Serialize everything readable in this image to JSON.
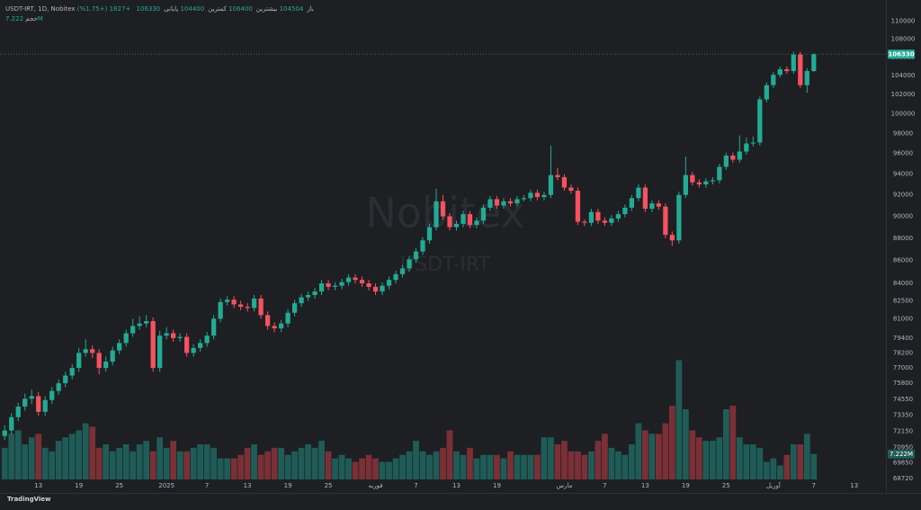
{
  "chart_data": {
    "type": "candlestick",
    "header": {
      "symbol": "USDT-IRT, 1D, Nobitex",
      "open_label": "باز",
      "high_label": "بیشترین",
      "low_label": "کمترین",
      "close_label": "پایانی",
      "change": "+1827 (+1.75%)"
    },
    "watermark": [
      "Nobitex",
      "USDT-IRT"
    ],
    "footer": "TradingView",
    "up_color": "#22ab94",
    "down_color": "#f7525f",
    "log_scale": true,
    "ylim": [
      67900,
      111600
    ],
    "yticks": [
      110000,
      108000,
      106000,
      104000,
      102000,
      100000,
      98000,
      96000,
      94000,
      92000,
      90000,
      88000,
      86000,
      84000,
      82500,
      81000,
      79400,
      78200,
      77000,
      75800,
      74550,
      73350,
      72150,
      70950,
      69850,
      68720
    ],
    "xlim": [
      -0.7,
      130.7
    ],
    "xticks": [
      {
        "value": 5,
        "label": "13"
      },
      {
        "value": 11,
        "label": "19"
      },
      {
        "value": 17,
        "label": "25"
      },
      {
        "value": 24,
        "label": "2025"
      },
      {
        "value": 30,
        "label": "7"
      },
      {
        "value": 36,
        "label": "13"
      },
      {
        "value": 42,
        "label": "19"
      },
      {
        "value": 48,
        "label": "25"
      },
      {
        "value": 55,
        "label": "فوریه"
      },
      {
        "value": 61,
        "label": "7"
      },
      {
        "value": 67,
        "label": "13"
      },
      {
        "value": 73,
        "label": "19"
      },
      {
        "value": 83,
        "label": "مارس"
      },
      {
        "value": 89,
        "label": "7"
      },
      {
        "value": 95,
        "label": "13"
      },
      {
        "value": 101,
        "label": "19"
      },
      {
        "value": 107,
        "label": "25"
      },
      {
        "value": 114,
        "label": "آوریل"
      },
      {
        "value": 120,
        "label": "7"
      },
      {
        "value": 126,
        "label": "13"
      }
    ],
    "ohlc": [
      [
        71800,
        72600,
        71500,
        72200
      ],
      [
        72200,
        73500,
        71900,
        73200
      ],
      [
        73200,
        74300,
        72900,
        74000
      ],
      [
        74000,
        75000,
        73700,
        74600
      ],
      [
        74600,
        75300,
        74200,
        74800
      ],
      [
        74800,
        75100,
        73300,
        73600
      ],
      [
        73600,
        74800,
        73300,
        74500
      ],
      [
        74500,
        75500,
        74200,
        75200
      ],
      [
        75200,
        76100,
        74900,
        75800
      ],
      [
        75800,
        76700,
        75500,
        76400
      ],
      [
        76400,
        77300,
        76100,
        77000
      ],
      [
        77000,
        78600,
        76700,
        78200
      ],
      [
        78200,
        79300,
        77900,
        78500
      ],
      [
        78500,
        78800,
        77800,
        78200
      ],
      [
        78200,
        78500,
        76500,
        77000
      ],
      [
        77000,
        77900,
        76700,
        77500
      ],
      [
        77500,
        78700,
        77200,
        78400
      ],
      [
        78400,
        79300,
        78100,
        79000
      ],
      [
        79000,
        80100,
        78700,
        79800
      ],
      [
        79800,
        81000,
        79500,
        80400
      ],
      [
        80400,
        81200,
        80100,
        80600
      ],
      [
        80600,
        81300,
        80300,
        80800
      ],
      [
        80800,
        81100,
        76700,
        77000
      ],
      [
        77000,
        80000,
        76700,
        79600
      ],
      [
        79600,
        80300,
        79300,
        79800
      ],
      [
        79800,
        80100,
        79100,
        79400
      ],
      [
        79400,
        79800,
        79100,
        79500
      ],
      [
        79500,
        79800,
        77900,
        78200
      ],
      [
        78200,
        78900,
        77900,
        78600
      ],
      [
        78600,
        79300,
        78300,
        79000
      ],
      [
        79000,
        79900,
        78700,
        79600
      ],
      [
        79600,
        81300,
        79300,
        81000
      ],
      [
        81000,
        82700,
        80700,
        82400
      ],
      [
        82400,
        82900,
        82100,
        82600
      ],
      [
        82600,
        82900,
        81900,
        82200
      ],
      [
        82200,
        82500,
        81700,
        82000
      ],
      [
        82000,
        82300,
        81600,
        81900
      ],
      [
        81900,
        83000,
        81600,
        82700
      ],
      [
        82700,
        83000,
        81000,
        81300
      ],
      [
        81300,
        81600,
        80100,
        80400
      ],
      [
        80400,
        80700,
        79900,
        80200
      ],
      [
        80200,
        80900,
        79900,
        80600
      ],
      [
        80600,
        81800,
        80300,
        81500
      ],
      [
        81500,
        82600,
        81200,
        82300
      ],
      [
        82300,
        83100,
        82000,
        82800
      ],
      [
        82800,
        83300,
        82500,
        83000
      ],
      [
        83000,
        83600,
        82700,
        83300
      ],
      [
        83300,
        84300,
        83000,
        84000
      ],
      [
        84000,
        84300,
        83400,
        83700
      ],
      [
        83700,
        84100,
        83400,
        83800
      ],
      [
        83800,
        84400,
        83500,
        84100
      ],
      [
        84100,
        84800,
        83800,
        84500
      ],
      [
        84500,
        84800,
        84000,
        84300
      ],
      [
        84300,
        84600,
        83700,
        84000
      ],
      [
        84000,
        84300,
        83400,
        83700
      ],
      [
        83700,
        84000,
        83000,
        83300
      ],
      [
        83300,
        84100,
        83000,
        83800
      ],
      [
        83800,
        84600,
        83500,
        84300
      ],
      [
        84300,
        85100,
        84000,
        84800
      ],
      [
        84800,
        85600,
        84500,
        85300
      ],
      [
        85300,
        86400,
        85000,
        86100
      ],
      [
        86100,
        87100,
        85800,
        86800
      ],
      [
        86800,
        88100,
        86500,
        87800
      ],
      [
        87800,
        89300,
        87500,
        89000
      ],
      [
        89000,
        92600,
        88700,
        91400
      ],
      [
        91400,
        92000,
        89700,
        90000
      ],
      [
        90000,
        90300,
        88700,
        89000
      ],
      [
        89000,
        89600,
        88700,
        89300
      ],
      [
        89300,
        90500,
        89000,
        90200
      ],
      [
        90200,
        90500,
        88900,
        89200
      ],
      [
        89200,
        89900,
        88900,
        89600
      ],
      [
        89600,
        91100,
        89300,
        90800
      ],
      [
        90800,
        91900,
        90500,
        91600
      ],
      [
        91600,
        91900,
        90700,
        91000
      ],
      [
        91000,
        91700,
        90700,
        91400
      ],
      [
        91400,
        91700,
        90900,
        91200
      ],
      [
        91200,
        91900,
        90900,
        91600
      ],
      [
        91600,
        92000,
        91400,
        91700
      ],
      [
        91700,
        92500,
        91400,
        92200
      ],
      [
        92200,
        92500,
        91500,
        91800
      ],
      [
        91800,
        92300,
        91500,
        92000
      ],
      [
        92000,
        96800,
        91700,
        93900
      ],
      [
        93900,
        94600,
        93400,
        93700
      ],
      [
        93700,
        94000,
        92400,
        92700
      ],
      [
        92700,
        93000,
        92100,
        92400
      ],
      [
        92400,
        92700,
        89200,
        89500
      ],
      [
        89500,
        89700,
        89100,
        89400
      ],
      [
        89400,
        90700,
        89100,
        90400
      ],
      [
        90400,
        90700,
        89300,
        89600
      ],
      [
        89600,
        89900,
        89100,
        89400
      ],
      [
        89400,
        90100,
        89100,
        89800
      ],
      [
        89800,
        90500,
        89500,
        90200
      ],
      [
        90200,
        91100,
        89900,
        90800
      ],
      [
        90800,
        92000,
        90500,
        91700
      ],
      [
        91700,
        93000,
        91400,
        92700
      ],
      [
        92700,
        93000,
        90400,
        90700
      ],
      [
        90700,
        91500,
        90400,
        91200
      ],
      [
        91200,
        91500,
        90600,
        90900
      ],
      [
        90900,
        91200,
        88000,
        88300
      ],
      [
        88300,
        88600,
        87300,
        87800
      ],
      [
        87800,
        92300,
        87500,
        92000
      ],
      [
        92000,
        95700,
        91700,
        93900
      ],
      [
        93900,
        94200,
        92900,
        93200
      ],
      [
        93200,
        93500,
        92700,
        93000
      ],
      [
        93000,
        93600,
        92700,
        93300
      ],
      [
        93300,
        93700,
        93000,
        93400
      ],
      [
        93400,
        95000,
        93100,
        94700
      ],
      [
        94700,
        96100,
        94400,
        95800
      ],
      [
        95800,
        96100,
        95100,
        95400
      ],
      [
        95400,
        97800,
        95100,
        96200
      ],
      [
        96200,
        97600,
        95900,
        97000
      ],
      [
        97000,
        97700,
        96700,
        97100
      ],
      [
        97100,
        101800,
        96800,
        101500
      ],
      [
        101500,
        103300,
        101200,
        103000
      ],
      [
        103000,
        104400,
        102700,
        104100
      ],
      [
        104100,
        105000,
        103800,
        104700
      ],
      [
        104700,
        105000,
        104200,
        104500
      ],
      [
        104500,
        106600,
        104200,
        106300
      ],
      [
        106300,
        106600,
        102700,
        103000
      ],
      [
        103000,
        104800,
        102200,
        104503
      ],
      [
        104504,
        106400,
        104400,
        106330
      ]
    ],
    "volume": {
      "name": "حجم",
      "last_label": "7.222M",
      "ylim": [
        0,
        40
      ],
      "up_color": "#1f5c57",
      "down_color": "#7a3036",
      "values": [
        9,
        13,
        14,
        10,
        12,
        13,
        9,
        8,
        11,
        12,
        13,
        14,
        16,
        15,
        9,
        10,
        8,
        9,
        10,
        8,
        10,
        11,
        8,
        12,
        9,
        11,
        8,
        8,
        9,
        10,
        10,
        9,
        6,
        6,
        6,
        7,
        9,
        10,
        7,
        8,
        9,
        9,
        7,
        8,
        9,
        10,
        9,
        11,
        8,
        6,
        7,
        6,
        5,
        6,
        7,
        6,
        5,
        5,
        6,
        7,
        8,
        11,
        8,
        7,
        8,
        9,
        14,
        8,
        7,
        9,
        6,
        7,
        7,
        7,
        6,
        8,
        7,
        7,
        7,
        7,
        12,
        12,
        10,
        11,
        8,
        8,
        7,
        8,
        11,
        13,
        9,
        8,
        7,
        10,
        16,
        14,
        13,
        13,
        16,
        21,
        34,
        20,
        14,
        12,
        11,
        11,
        12,
        20,
        21,
        12,
        10,
        10,
        9,
        5,
        6,
        4,
        7,
        10,
        10,
        13,
        7.222
      ]
    }
  }
}
